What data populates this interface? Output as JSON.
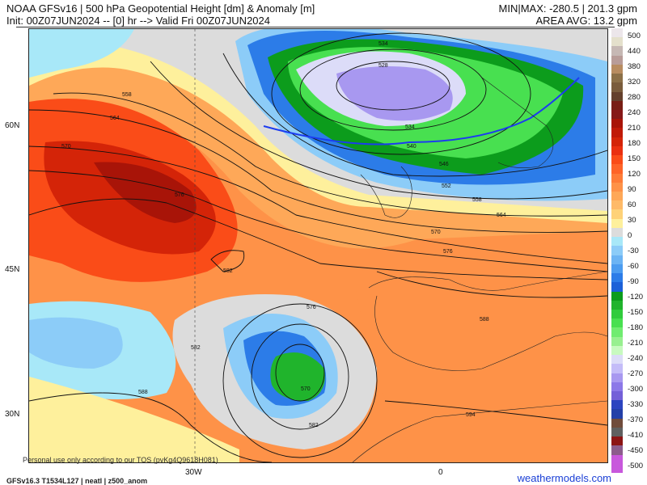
{
  "header": {
    "title": "NOAA GFSv16 | 500 hPa Geopotential Height [dm] & Anomaly [m]",
    "subtitle": "Init: 00Z07JUN2024 -- [0] hr --> Valid Fri 00Z07JUN2024",
    "minmax": "MIN|MAX: -280.5 | 201.3 gpm",
    "area_avg": "AREA AVG: 13.2 gpm"
  },
  "map": {
    "lat_labels": [
      "60N",
      "45N",
      "30N"
    ],
    "lon_labels": [
      "30W",
      "0"
    ],
    "contour_labels": [
      "534",
      "528",
      "534",
      "540",
      "546",
      "552",
      "558",
      "564",
      "570",
      "576",
      "582",
      "576",
      "582",
      "570",
      "576",
      "588",
      "594",
      "582",
      "588",
      "558",
      "564",
      "570"
    ]
  },
  "colorbar": {
    "labels": [
      "500",
      "440",
      "380",
      "320",
      "280",
      "240",
      "210",
      "180",
      "150",
      "120",
      "90",
      "60",
      "30",
      "0",
      "-30",
      "-60",
      "-90",
      "-120",
      "-150",
      "-180",
      "-210",
      "-240",
      "-270",
      "-300",
      "-330",
      "-370",
      "-410",
      "-450",
      "-500"
    ],
    "colors": [
      "#ece6ea",
      "#e4e0cc",
      "#c6b8b4",
      "#b89c98",
      "#b88c60",
      "#8c7048",
      "#7a5c3c",
      "#64402c",
      "#781e14",
      "#861818",
      "#a81408",
      "#c01a08",
      "#d42408",
      "#ea3010",
      "#fa4c18",
      "#fe6428",
      "#fe7c38",
      "#fe9248",
      "#fea858",
      "#feba68",
      "#fed278",
      "#fef09c",
      "#dcdcdc",
      "#a8e8f8",
      "#8cccf8",
      "#6cb4f4",
      "#4c9cf0",
      "#2c7ce8",
      "#1c60d8",
      "#0c9c1c",
      "#20b42c",
      "#30cc3c",
      "#48e050",
      "#70ec70",
      "#98f090",
      "#c8fac0",
      "#dcdcf8",
      "#c4bcf8",
      "#a898f0",
      "#8c78e8",
      "#7460d8",
      "#2c44c0",
      "#2440a8",
      "#704c3c",
      "#606060",
      "#8c1414",
      "#8c5c8c",
      "#c858dc",
      "#c858dc"
    ]
  },
  "footer": {
    "tos": "Personal use only according to our TOS (pvKg4Q9618H081)",
    "model": "GFSv16.3 T1534L127 | neatl | z500_anom",
    "brand": "weathermodels.com"
  }
}
